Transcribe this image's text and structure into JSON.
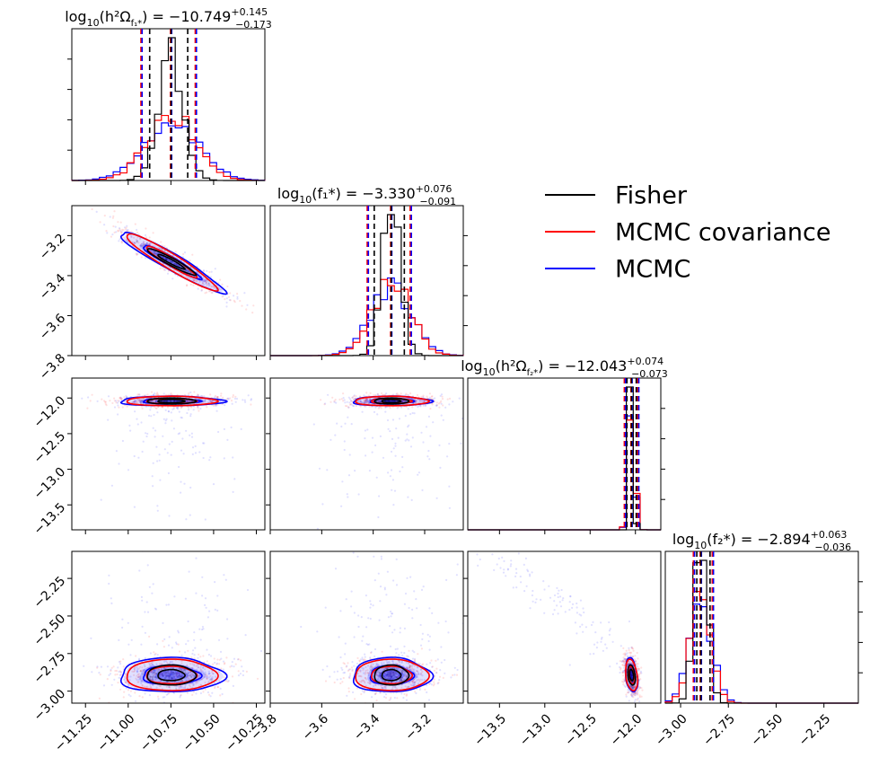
{
  "chart_data": {
    "type": "corner",
    "parameters": [
      {
        "name": "log10_h2Omega_f1",
        "range": [
          -11.33,
          -10.2
        ],
        "ticks": [
          -11.25,
          -11.0,
          -10.75,
          -10.5,
          -10.25
        ],
        "tick_labels": [
          "−11.25",
          "−11.00",
          "−10.75",
          "−10.50",
          "−10.25"
        ],
        "title": {
          "prefix": "log",
          "sub10": "10",
          "body": "(h²Ω",
          "sub": "f₁*",
          "close": ") = ",
          "value": "−10.749",
          "plus": "+0.145",
          "minus": "−0.173"
        },
        "median": -10.749,
        "lo": -10.922,
        "hi": -10.604
      },
      {
        "name": "log10_f1",
        "range": [
          -3.8,
          -3.05
        ],
        "ticks": [
          -3.8,
          -3.6,
          -3.4,
          -3.2
        ],
        "tick_labels": [
          "−3.8",
          "−3.6",
          "−3.4",
          "−3.2"
        ],
        "title": {
          "prefix": "log",
          "sub10": "10",
          "body": "(f₁*",
          "sub": "",
          "close": ") = ",
          "value": "−3.330",
          "plus": "+0.076",
          "minus": "−0.091"
        },
        "median": -3.33,
        "lo": -3.421,
        "hi": -3.254
      },
      {
        "name": "log10_h2Omega_f2",
        "range": [
          -13.85,
          -11.72
        ],
        "ticks": [
          -13.5,
          -13.0,
          -12.5,
          -12.0
        ],
        "tick_labels": [
          "−13.5",
          "−13.0",
          "−12.5",
          "−12.0"
        ],
        "title": {
          "prefix": "log",
          "sub10": "10",
          "body": "(h²Ω",
          "sub": "f₂*",
          "close": ") = ",
          "value": "−12.043",
          "plus": "+0.074",
          "minus": "−0.073"
        },
        "median": -12.043,
        "lo": -12.116,
        "hi": -11.969
      },
      {
        "name": "log10_f2",
        "range": [
          -3.08,
          -2.07
        ],
        "ticks": [
          -3.0,
          -2.75,
          -2.5,
          -2.25
        ],
        "tick_labels": [
          "−3.00",
          "−2.75",
          "−2.50",
          "−2.25"
        ],
        "title": {
          "prefix": "log",
          "sub10": "10",
          "body": "(f₂*",
          "sub": "",
          "close": ") = ",
          "value": "−2.894",
          "plus": "+0.063",
          "minus": "−0.036"
        },
        "median": -2.894,
        "lo": -2.93,
        "hi": -2.831
      }
    ],
    "series": [
      {
        "name": "Fisher",
        "color": "#000000"
      },
      {
        "name": "MCMC covariance",
        "color": "#ff0000"
      },
      {
        "name": "MCMC",
        "color": "#0000ff"
      }
    ],
    "quantile_lines": {
      "style": "dashed",
      "quantiles": [
        0.16,
        0.5,
        0.84
      ]
    },
    "legend_position": "top-right"
  }
}
